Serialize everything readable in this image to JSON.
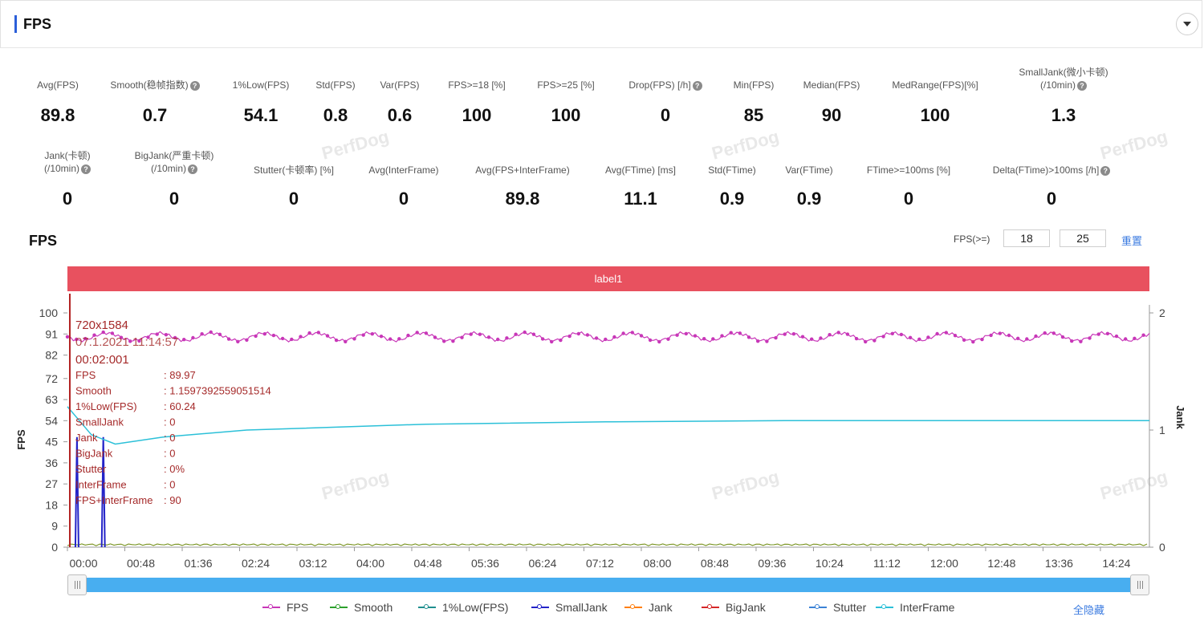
{
  "panel": {
    "title": "FPS",
    "accent_color": "#2b5fd9",
    "collapse_icon": "chevron-down-icon"
  },
  "stats": [
    {
      "label": "Avg(FPS)",
      "value": "89.8",
      "help": false
    },
    {
      "label": "Smooth(稳帧指数)",
      "value": "0.7",
      "help": true
    },
    {
      "label": "1%Low(FPS)",
      "value": "54.1",
      "help": false
    },
    {
      "label": "Std(FPS)",
      "value": "0.8",
      "help": false
    },
    {
      "label": "Var(FPS)",
      "value": "0.6",
      "help": false
    },
    {
      "label": "FPS>=18 [%]",
      "value": "100",
      "help": false
    },
    {
      "label": "FPS>=25 [%]",
      "value": "100",
      "help": false
    },
    {
      "label": "Drop(FPS) [/h]",
      "value": "0",
      "help": true
    },
    {
      "label": "Min(FPS)",
      "value": "85",
      "help": false
    },
    {
      "label": "Median(FPS)",
      "value": "90",
      "help": false
    },
    {
      "label": "MedRange(FPS)[%]",
      "value": "100",
      "help": false
    },
    {
      "label": "SmallJank(微小卡顿)",
      "label2": "(/10min)",
      "value": "1.3",
      "help": true
    },
    {
      "label": "Jank(卡顿)",
      "label2": "(/10min)",
      "value": "0",
      "help": true
    },
    {
      "label": "BigJank(严重卡顿)",
      "label2": "(/10min)",
      "value": "0",
      "help": true
    },
    {
      "label": "Stutter(卡顿率) [%]",
      "value": "0",
      "help": false
    },
    {
      "label": "Avg(InterFrame)",
      "value": "0",
      "help": false
    },
    {
      "label": "Avg(FPS+InterFrame)",
      "value": "89.8",
      "help": false
    },
    {
      "label": "Avg(FTime) [ms]",
      "value": "11.1",
      "help": false
    },
    {
      "label": "Std(FTime)",
      "value": "0.9",
      "help": false
    },
    {
      "label": "Var(FTime)",
      "value": "0.9",
      "help": false
    },
    {
      "label": "FTime>=100ms [%]",
      "value": "0",
      "help": false
    },
    {
      "label": "Delta(FTime)>100ms [/h]",
      "value": "0",
      "help": true
    }
  ],
  "watermark": "PerfDog",
  "chart_controls": {
    "title": "FPS",
    "fps_threshold_label": "FPS(>=)",
    "threshold_1": "18",
    "threshold_2": "25",
    "reset_label": "重置"
  },
  "label_band": {
    "text": "label1",
    "color": "#e8515f"
  },
  "tooltip": {
    "resolution": "720x1584",
    "date_partial": "07.1.2021 11:14:57",
    "time": "00:02:001",
    "rows": [
      {
        "key": "FPS",
        "value": ": 89.97"
      },
      {
        "key": "Smooth",
        "value": ": 1.1597392559051514"
      },
      {
        "key": "1%Low(FPS)",
        "value": ": 60.24"
      },
      {
        "key": "SmallJank",
        "value": ": 0"
      },
      {
        "key": "Jank",
        "value": ": 0"
      },
      {
        "key": "BigJank",
        "value": ": 0"
      },
      {
        "key": "Stutter",
        "value": ": 0%"
      },
      {
        "key": "InterFrame",
        "value": ": 0"
      },
      {
        "key": "FPS+InterFrame",
        "value": ": 90"
      }
    ],
    "color": "#a52a2a"
  },
  "chart_data": {
    "type": "line",
    "ylabel": "FPS",
    "y2label": "Jank",
    "y_ticks": [
      0,
      9,
      18,
      27,
      36,
      45,
      54,
      63,
      72,
      82,
      91,
      100
    ],
    "ylim": [
      0,
      100
    ],
    "y2_ticks": [
      0,
      1,
      2
    ],
    "y2lim": [
      0,
      2
    ],
    "x_ticks": [
      "00:00",
      "00:48",
      "01:36",
      "02:24",
      "03:12",
      "04:00",
      "04:48",
      "05:36",
      "06:24",
      "07:12",
      "08:00",
      "08:48",
      "09:36",
      "10:24",
      "11:12",
      "12:00",
      "12:48",
      "13:36",
      "14:24"
    ],
    "xlim_seconds": [
      0,
      905
    ],
    "series": [
      {
        "name": "FPS",
        "color": "#c837b8",
        "approx_value": 89.8,
        "min": 85,
        "max": 92
      },
      {
        "name": "Smooth",
        "color": "#2ca02c"
      },
      {
        "name": "1%Low(FPS)",
        "color": "#1f8f8f",
        "points": [
          [
            0,
            60
          ],
          [
            20,
            48
          ],
          [
            40,
            44
          ],
          [
            80,
            47
          ],
          [
            150,
            50
          ],
          [
            300,
            52.5
          ],
          [
            450,
            53.5
          ],
          [
            600,
            54
          ],
          [
            750,
            54
          ],
          [
            905,
            54
          ]
        ]
      },
      {
        "name": "SmallJank",
        "color": "#2323c8",
        "spikes_seconds": [
          8,
          30
        ]
      },
      {
        "name": "Jank",
        "color": "#ff7f0e"
      },
      {
        "name": "BigJank",
        "color": "#d62728"
      },
      {
        "name": "Stutter",
        "color": "#3b82d6"
      },
      {
        "name": "InterFrame",
        "color": "#2bc0d8"
      }
    ],
    "cursor_seconds": 2,
    "cursor_color": "#b22222"
  },
  "slider_color": "#48aef0",
  "legend_hide_all": "全隐藏"
}
